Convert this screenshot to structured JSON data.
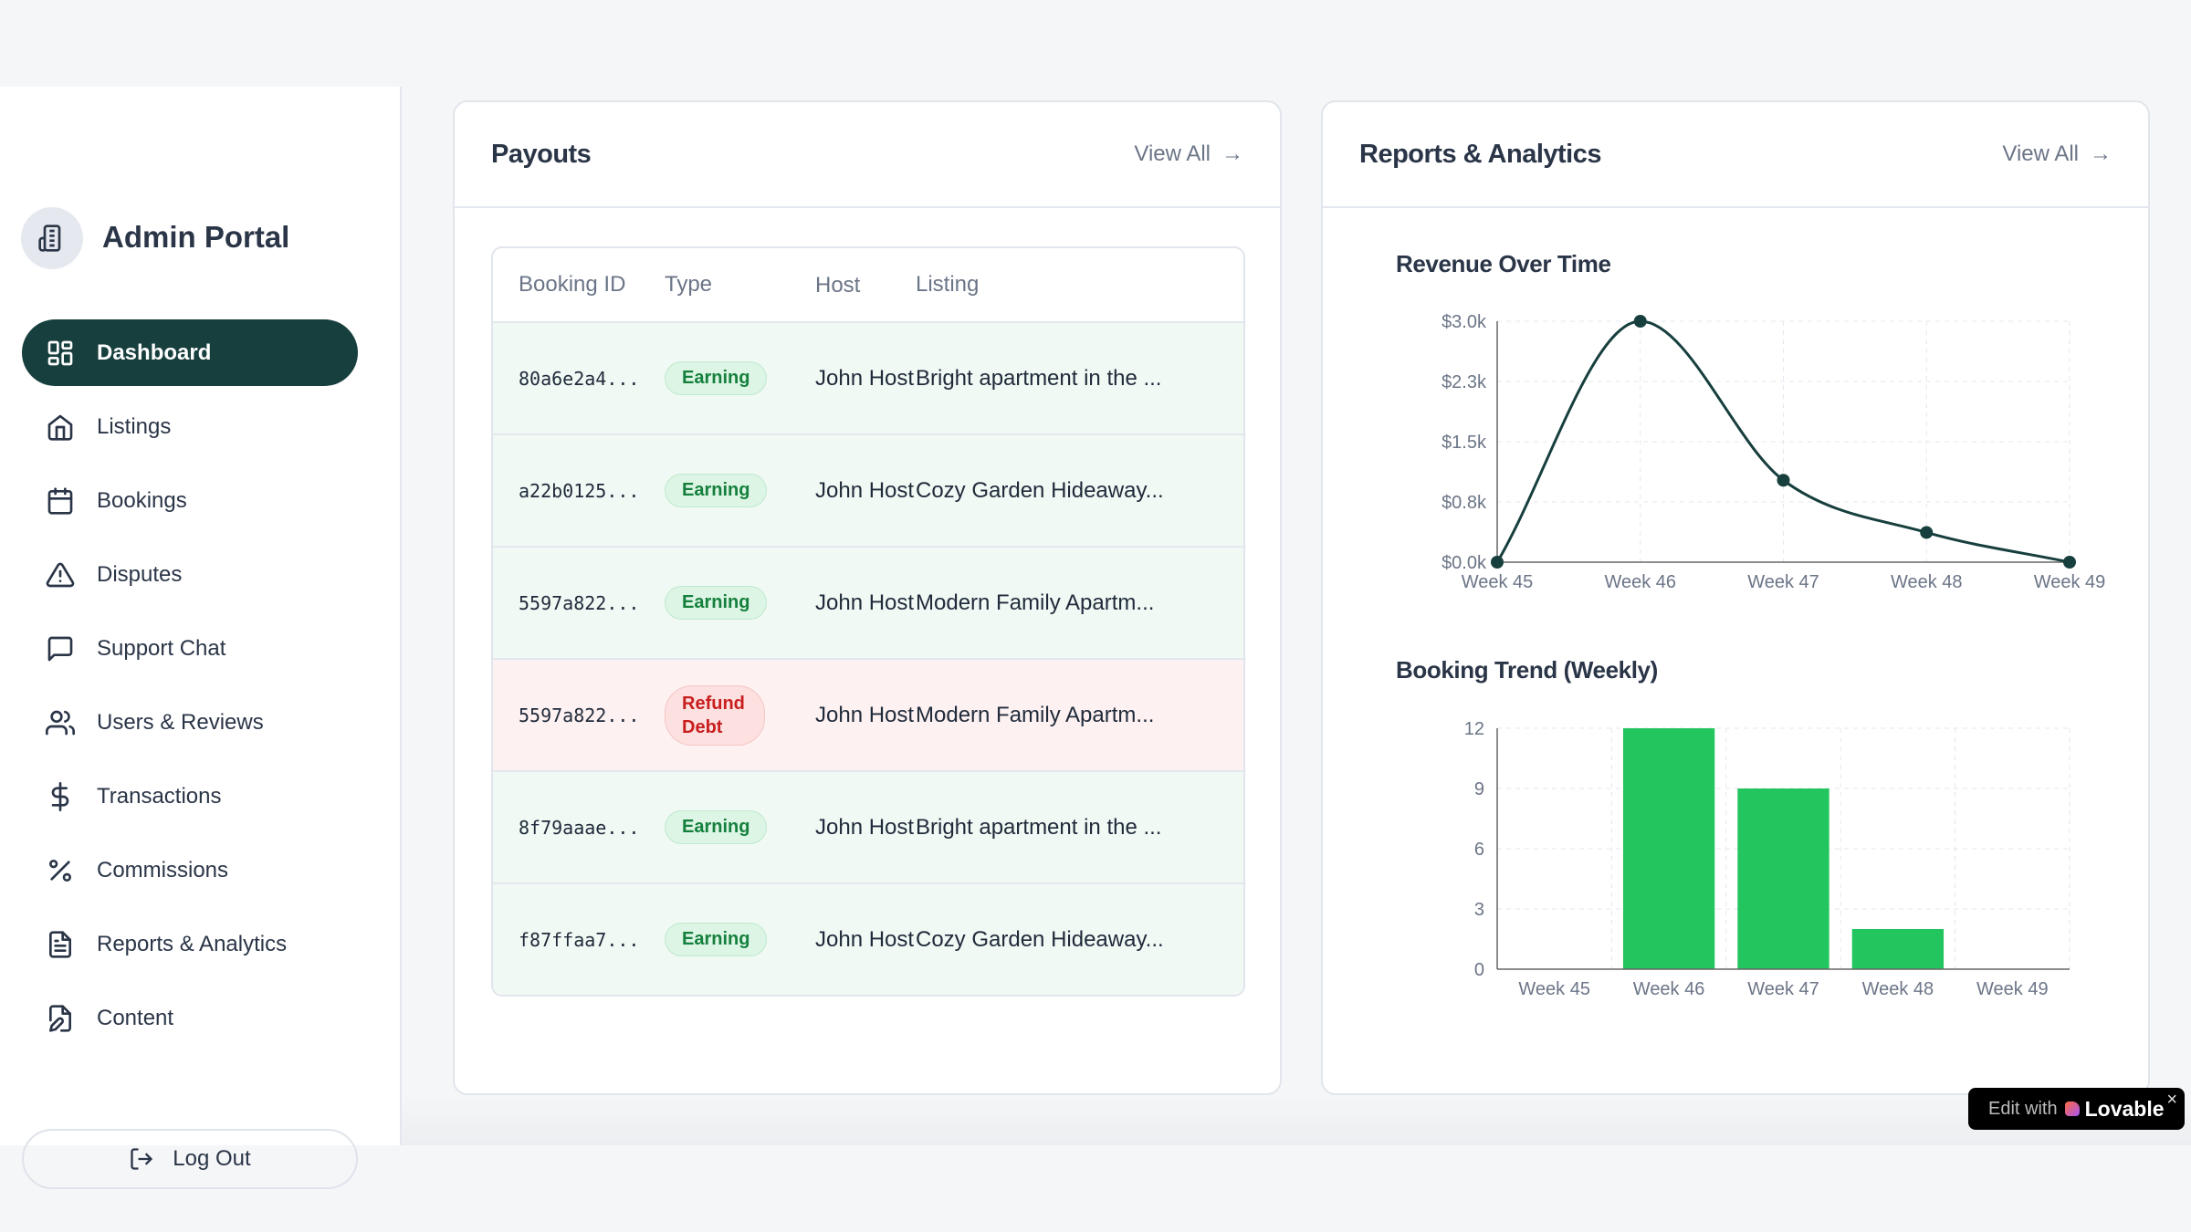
{
  "sidebar": {
    "title": "Admin Portal",
    "items": [
      {
        "label": "Dashboard",
        "icon": "layout-dashboard-icon",
        "active": true
      },
      {
        "label": "Listings",
        "icon": "home-icon"
      },
      {
        "label": "Bookings",
        "icon": "calendar-icon"
      },
      {
        "label": "Disputes",
        "icon": "alert-triangle-icon"
      },
      {
        "label": "Support Chat",
        "icon": "message-square-icon"
      },
      {
        "label": "Users & Reviews",
        "icon": "users-icon"
      },
      {
        "label": "Transactions",
        "icon": "dollar-sign-icon"
      },
      {
        "label": "Commissions",
        "icon": "percent-icon"
      },
      {
        "label": "Reports & Analytics",
        "icon": "file-text-icon"
      },
      {
        "label": "Content",
        "icon": "file-edit-icon"
      }
    ],
    "logout": "Log Out"
  },
  "payouts": {
    "title": "Payouts",
    "view_all": "View All",
    "columns": [
      "Booking ID",
      "Type",
      "Host",
      "Listing"
    ],
    "rows": [
      {
        "id": "80a6e2a4...",
        "type": "Earning",
        "host": "John Host",
        "listing": "Bright apartment in the ..."
      },
      {
        "id": "a22b0125...",
        "type": "Earning",
        "host": "John Host",
        "listing": "Cozy Garden Hideaway..."
      },
      {
        "id": "5597a822...",
        "type": "Earning",
        "host": "John Host",
        "listing": "Modern Family Apartm..."
      },
      {
        "id": "5597a822...",
        "type": "Refund Debt",
        "host": "John Host",
        "listing": "Modern Family Apartm..."
      },
      {
        "id": "8f79aaae...",
        "type": "Earning",
        "host": "John Host",
        "listing": "Bright apartment in the ..."
      },
      {
        "id": "f87ffaa7...",
        "type": "Earning",
        "host": "John Host",
        "listing": "Cozy Garden Hideaway..."
      }
    ]
  },
  "reports": {
    "title": "Reports & Analytics",
    "view_all": "View All"
  },
  "colors": {
    "primary": "#173f3d",
    "bar": "#22c55e",
    "earning": "#15803d",
    "refund": "#c81e1e"
  },
  "chart_data": [
    {
      "type": "line",
      "title": "Revenue Over Time",
      "categories": [
        "Week 45",
        "Week 46",
        "Week 47",
        "Week 48",
        "Week 49"
      ],
      "values": [
        0,
        3000,
        1020,
        370,
        0
      ],
      "yticks": [
        "$0.0k",
        "$0.8k",
        "$1.5k",
        "$2.3k",
        "$3.0k"
      ],
      "ylim": [
        0,
        3000
      ],
      "grid": true
    },
    {
      "type": "bar",
      "title": "Booking Trend (Weekly)",
      "categories": [
        "Week 45",
        "Week 46",
        "Week 47",
        "Week 48",
        "Week 49"
      ],
      "values": [
        0,
        12,
        9,
        2,
        0
      ],
      "yticks": [
        "0",
        "3",
        "6",
        "9",
        "12"
      ],
      "ylim": [
        0,
        12
      ],
      "grid": true
    }
  ],
  "badge": {
    "prefix": "Edit with",
    "brand": "Lovable"
  }
}
